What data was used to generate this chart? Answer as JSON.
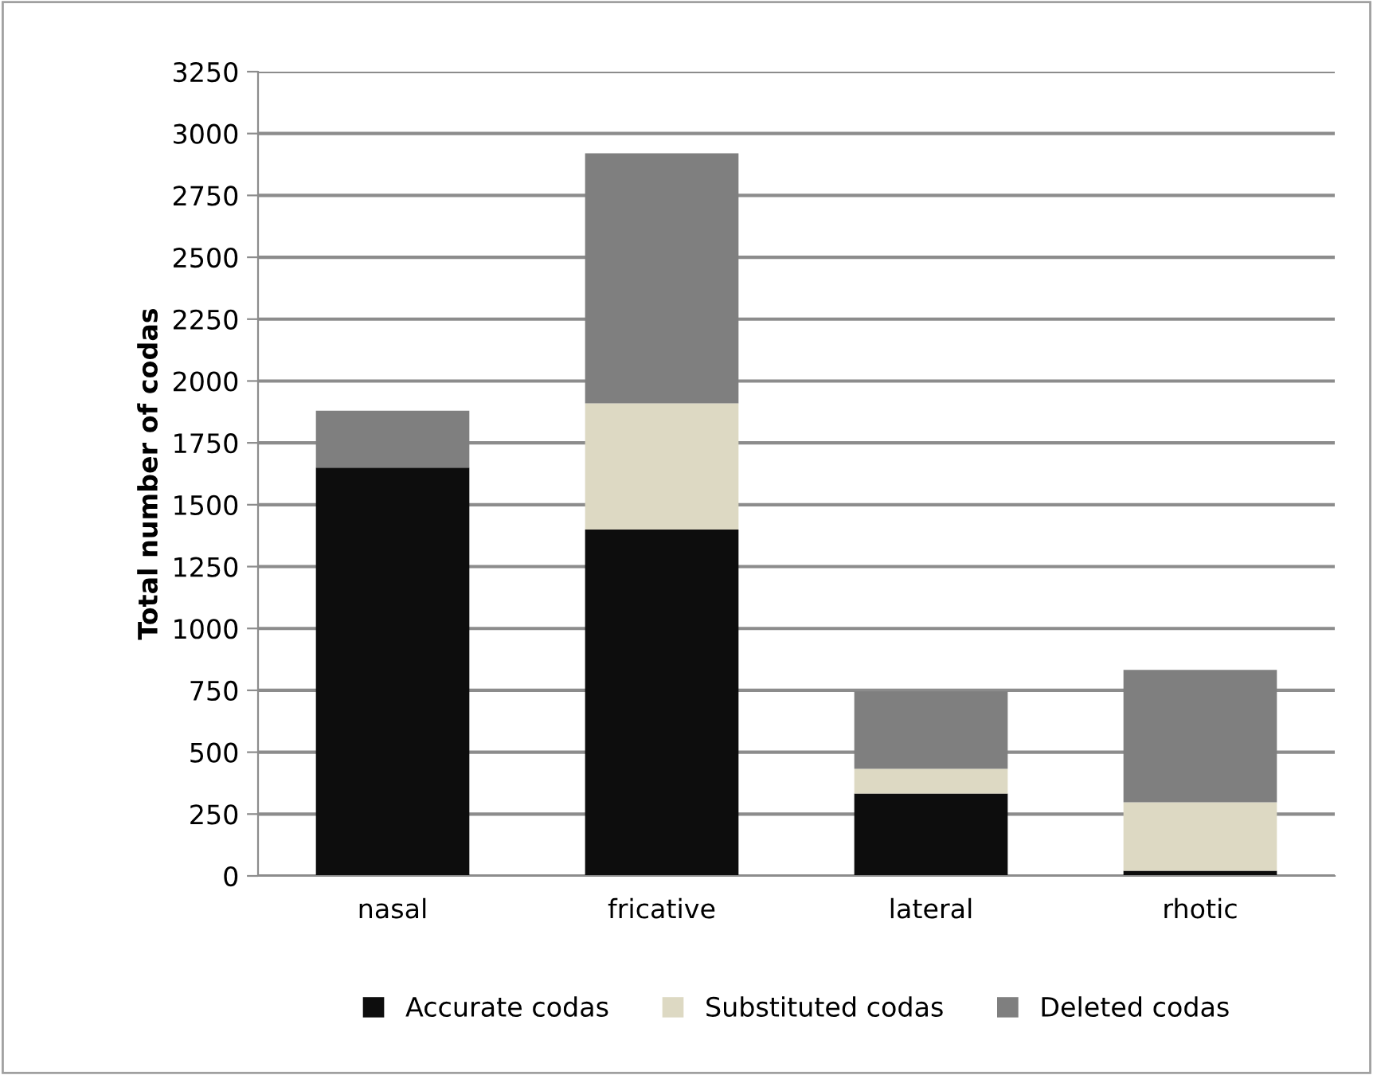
{
  "chart_data": {
    "type": "bar",
    "stacked": true,
    "ylabel": "Total number of codas",
    "categories": [
      "nasal",
      "fricative",
      "lateral",
      "rhotic"
    ],
    "series": [
      {
        "name": "Accurate codas",
        "color": "#0d0d0d",
        "values": [
          1650,
          1400,
          333,
          21
        ]
      },
      {
        "name": "Substituted codas",
        "color": "#ddd9c3",
        "values": [
          0,
          510,
          100,
          277
        ]
      },
      {
        "name": "Deleted codas",
        "color": "#7f7f7f",
        "values": [
          230,
          1010,
          313,
          535
        ]
      }
    ],
    "ylim": [
      0,
      3250
    ],
    "yticks": [
      0,
      250,
      500,
      750,
      1000,
      1250,
      1500,
      1750,
      2000,
      2250,
      2500,
      2750,
      3000,
      3250
    ],
    "grid": "y",
    "legend": "bottom"
  }
}
